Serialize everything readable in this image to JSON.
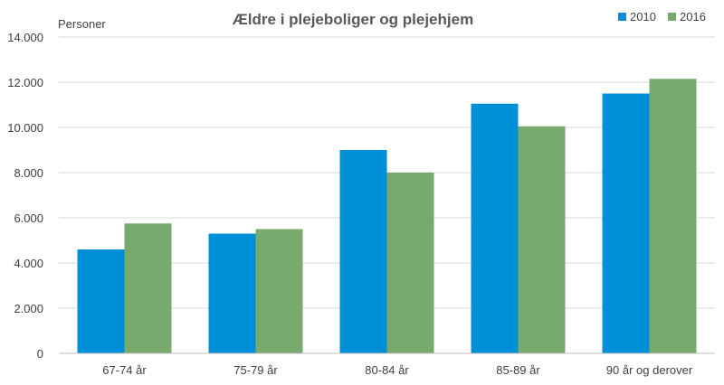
{
  "chart_data": {
    "type": "bar",
    "title": "Ældre i plejeboliger og plejehjem",
    "ylabel": "Personer",
    "xlabel": "",
    "categories": [
      "67-74 år",
      "75-79 år",
      "80-84 år",
      "85-89 år",
      "90 år og derover"
    ],
    "series": [
      {
        "name": "2010",
        "color": "#0090d8",
        "values": [
          4600,
          5300,
          9000,
          11050,
          11500
        ]
      },
      {
        "name": "2016",
        "color": "#78aa6d",
        "values": [
          5750,
          5500,
          8000,
          10050,
          12150
        ]
      }
    ],
    "ylim": [
      0,
      14000
    ],
    "yticks": [
      0,
      2000,
      4000,
      6000,
      8000,
      10000,
      12000,
      14000
    ],
    "ytick_labels": [
      "0",
      "2.000",
      "4.000",
      "6.000",
      "8.000",
      "10.000",
      "12.000",
      "14.000"
    ],
    "grid": true,
    "legend": "top-right"
  }
}
